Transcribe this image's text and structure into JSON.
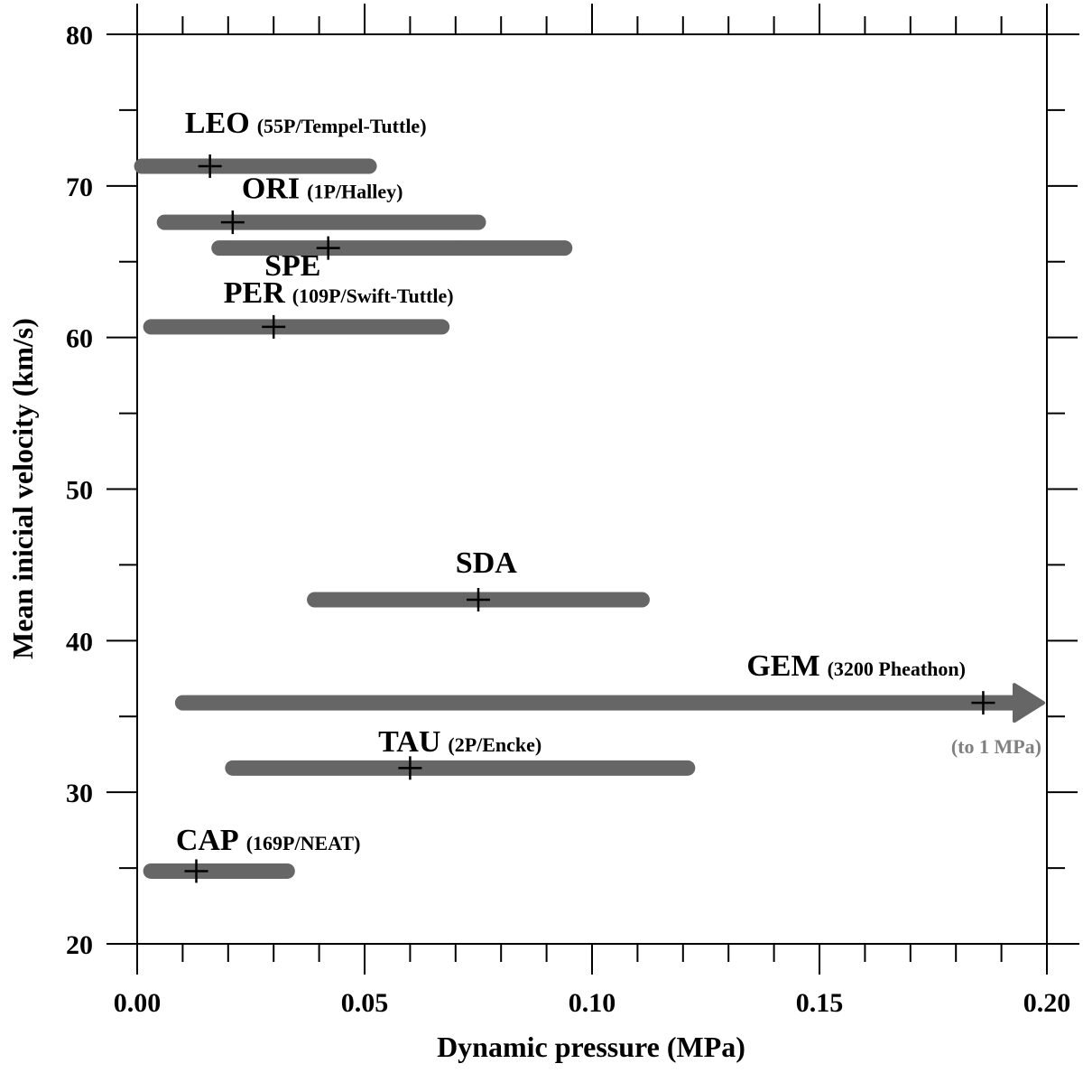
{
  "chart_data": {
    "type": "range",
    "title": "",
    "xlabel": "Dynamic pressure (MPa)",
    "ylabel": "Mean inicial velocity (km/s)",
    "xlim": [
      0.0,
      0.2
    ],
    "ylim": [
      20,
      80
    ],
    "x_major_ticks": [
      0.0,
      0.05,
      0.1,
      0.15,
      0.2
    ],
    "x_tick_labels": [
      "0.00",
      "0.05",
      "0.10",
      "0.15",
      "0.20"
    ],
    "x_minor_step": 0.01,
    "y_major_ticks": [
      20,
      30,
      40,
      50,
      60,
      70,
      80
    ],
    "y_tick_labels": [
      "20",
      "30",
      "40",
      "50",
      "60",
      "70",
      "80"
    ],
    "y_minor_step": 5,
    "grid": false,
    "bar_color": "#666666",
    "note_color": "#808080",
    "showers": [
      {
        "code": "LEO",
        "parent": "(55P/Tempel-Tuttle)",
        "velocity": 71.3,
        "p_min": 0.001,
        "p_max": 0.051,
        "p_mean": 0.016,
        "label_x": 0.0105,
        "label_v": 73.5
      },
      {
        "code": "ORI",
        "parent": "(1P/Halley)",
        "velocity": 67.6,
        "p_min": 0.006,
        "p_max": 0.075,
        "p_mean": 0.021,
        "label_x": 0.023,
        "label_v": 69.2
      },
      {
        "code": "SPE",
        "parent": "",
        "velocity": 65.9,
        "p_min": 0.018,
        "p_max": 0.094,
        "p_mean": 0.042,
        "label_x": 0.028,
        "label_v": 64.1
      },
      {
        "code": "PER",
        "parent": "(109P/Swift-Tuttle)",
        "velocity": 60.7,
        "p_min": 0.003,
        "p_max": 0.067,
        "p_mean": 0.03,
        "label_x": 0.019,
        "label_v": 62.3
      },
      {
        "code": "SDA",
        "parent": "",
        "velocity": 42.7,
        "p_min": 0.039,
        "p_max": 0.111,
        "p_mean": 0.075,
        "label_x": 0.07,
        "label_v": 44.5
      },
      {
        "code": "GEM",
        "parent": "(3200 Pheathon)",
        "velocity": 35.9,
        "p_min": 0.01,
        "p_max": 0.2,
        "p_mean": 0.186,
        "label_x": 0.134,
        "label_v": 37.7,
        "open_ended": true,
        "note": "(to 1 MPa)"
      },
      {
        "code": "TAU",
        "parent": "(2P/Encke)",
        "velocity": 31.6,
        "p_min": 0.021,
        "p_max": 0.121,
        "p_mean": 0.06,
        "label_x": 0.053,
        "label_v": 32.7
      },
      {
        "code": "CAP",
        "parent": "(169P/NEAT)",
        "velocity": 24.8,
        "p_min": 0.003,
        "p_max": 0.033,
        "p_mean": 0.013,
        "label_x": 0.0085,
        "label_v": 26.2
      }
    ]
  }
}
